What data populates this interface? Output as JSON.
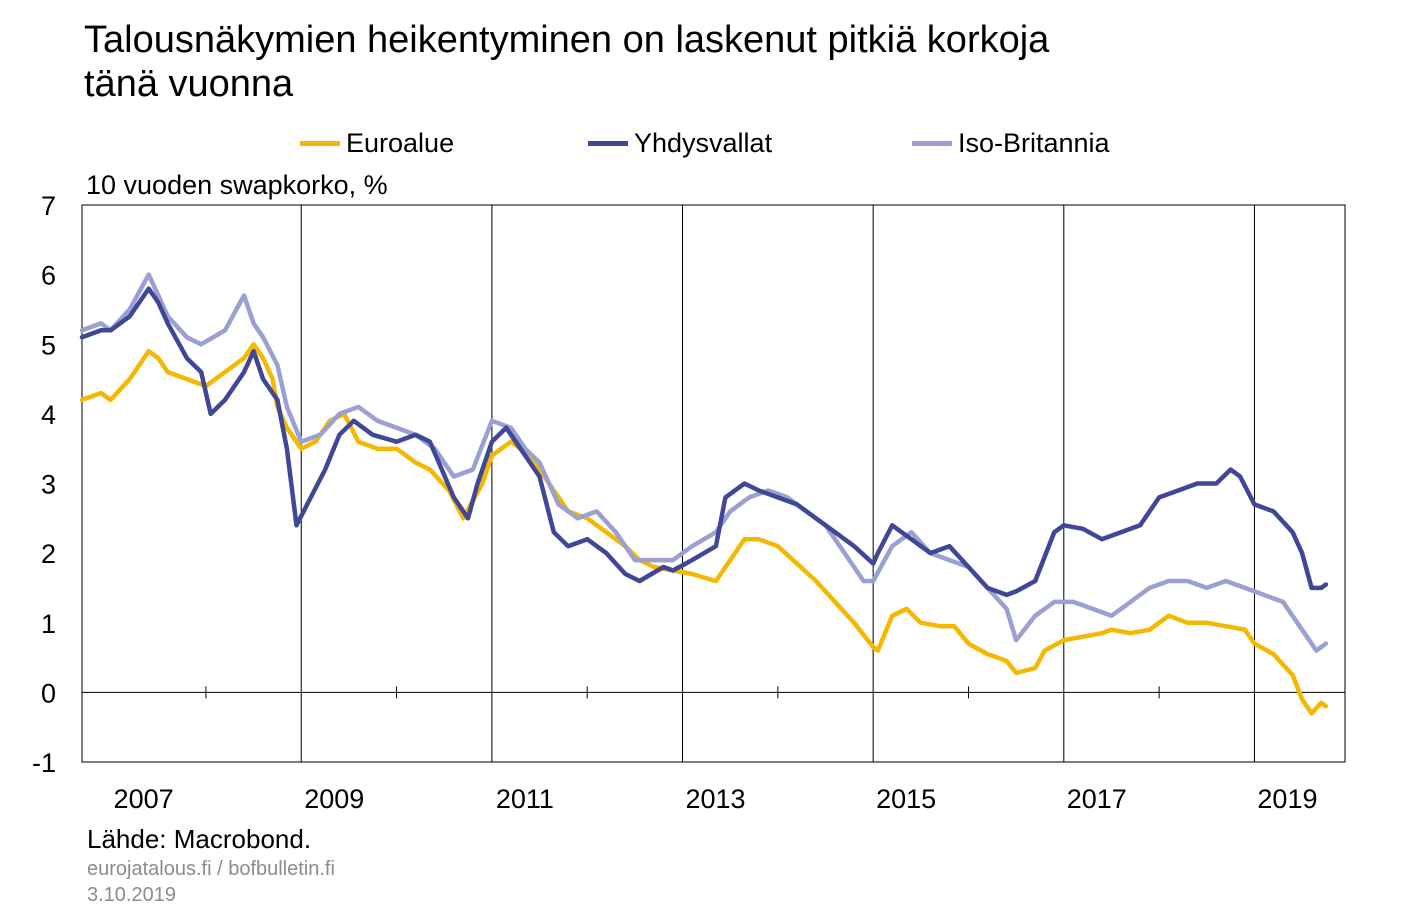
{
  "title_line1": "Talousnäkymien heikentyminen on laskenut pitkiä korkoja",
  "title_line2": "tänä vuonna",
  "legend": [
    {
      "name": "Euroalue",
      "color": "#F5B800"
    },
    {
      "name": "Yhdysvallat",
      "color": "#3F4796"
    },
    {
      "name": "Iso-Britannia",
      "color": "#9AA0D2"
    }
  ],
  "source": "Lähde: Macrobond.",
  "footer_sites": "eurojatalous.fi  / bofbulletin.fi",
  "footer_date": "3.10.2019",
  "chart_data": {
    "type": "line",
    "title": "Talousnäkymien heikentyminen on laskenut pitkiä korkoja tänä vuonna",
    "ylabel": "10 vuoden swapkorko, %",
    "xlabel": "",
    "ylim": [
      -1,
      7
    ],
    "yticks": [
      "-1",
      "0",
      "1",
      "2",
      "3",
      "4",
      "5",
      "6",
      "7"
    ],
    "xlim": [
      2006.7,
      2019.95
    ],
    "xtick_labels": [
      "2007",
      "2009",
      "2011",
      "2013",
      "2015",
      "2017",
      "2019"
    ],
    "grid": "vertical lines at odd years, horizontal line at 0",
    "legend_position": "top",
    "series": [
      {
        "name": "Euroalue",
        "color": "#F5B800",
        "x": [
          2006.7,
          2006.9,
          2007.0,
          2007.2,
          2007.4,
          2007.5,
          2007.6,
          2007.8,
          2008.0,
          2008.2,
          2008.4,
          2008.5,
          2008.6,
          2008.7,
          2008.75,
          2008.85,
          2009.0,
          2009.15,
          2009.3,
          2009.45,
          2009.6,
          2009.8,
          2010.0,
          2010.2,
          2010.35,
          2010.55,
          2010.7,
          2010.9,
          2011.0,
          2011.2,
          2011.3,
          2011.5,
          2011.6,
          2011.8,
          2012.0,
          2012.2,
          2012.4,
          2012.55,
          2012.7,
          2012.9,
          2013.1,
          2013.35,
          2013.5,
          2013.65,
          2013.8,
          2014.0,
          2014.2,
          2014.4,
          2014.6,
          2014.8,
          2015.0,
          2015.05,
          2015.2,
          2015.35,
          2015.5,
          2015.7,
          2015.85,
          2016.0,
          2016.2,
          2016.4,
          2016.5,
          2016.7,
          2016.8,
          2017.0,
          2017.2,
          2017.4,
          2017.5,
          2017.7,
          2017.9,
          2018.1,
          2018.3,
          2018.5,
          2018.7,
          2018.9,
          2019.0,
          2019.2,
          2019.4,
          2019.5,
          2019.6,
          2019.7,
          2019.75
        ],
        "values": [
          4.2,
          4.3,
          4.2,
          4.5,
          4.9,
          4.8,
          4.6,
          4.5,
          4.4,
          4.6,
          4.8,
          5.0,
          4.8,
          4.5,
          4.1,
          3.8,
          3.5,
          3.6,
          3.9,
          4.0,
          3.6,
          3.5,
          3.5,
          3.3,
          3.2,
          2.9,
          2.5,
          3.0,
          3.4,
          3.6,
          3.5,
          3.2,
          3.0,
          2.6,
          2.5,
          2.3,
          2.1,
          1.9,
          1.8,
          1.75,
          1.7,
          1.6,
          1.9,
          2.2,
          2.2,
          2.1,
          1.85,
          1.6,
          1.3,
          1.0,
          0.65,
          0.6,
          1.1,
          1.2,
          1.0,
          0.95,
          0.95,
          0.7,
          0.55,
          0.45,
          0.28,
          0.35,
          0.6,
          0.75,
          0.8,
          0.85,
          0.9,
          0.85,
          0.9,
          1.1,
          1.0,
          1.0,
          0.95,
          0.9,
          0.7,
          0.55,
          0.25,
          -0.1,
          -0.3,
          -0.15,
          -0.2
        ]
      },
      {
        "name": "Yhdysvallat",
        "color": "#3F4796",
        "x": [
          2006.7,
          2006.9,
          2007.0,
          2007.2,
          2007.4,
          2007.5,
          2007.6,
          2007.8,
          2007.95,
          2008.05,
          2008.2,
          2008.4,
          2008.5,
          2008.6,
          2008.75,
          2008.85,
          2008.95,
          2009.1,
          2009.25,
          2009.4,
          2009.55,
          2009.75,
          2010.0,
          2010.2,
          2010.35,
          2010.6,
          2010.75,
          2010.85,
          2011.0,
          2011.15,
          2011.3,
          2011.5,
          2011.65,
          2011.8,
          2012.0,
          2012.2,
          2012.4,
          2012.55,
          2012.8,
          2012.9,
          2013.1,
          2013.35,
          2013.45,
          2013.65,
          2013.8,
          2014.0,
          2014.2,
          2014.4,
          2014.6,
          2014.8,
          2015.0,
          2015.05,
          2015.2,
          2015.4,
          2015.6,
          2015.8,
          2016.0,
          2016.2,
          2016.4,
          2016.5,
          2016.7,
          2016.9,
          2017.0,
          2017.2,
          2017.4,
          2017.6,
          2017.8,
          2018.0,
          2018.2,
          2018.4,
          2018.6,
          2018.75,
          2018.85,
          2019.0,
          2019.2,
          2019.4,
          2019.5,
          2019.6,
          2019.7,
          2019.75
        ],
        "values": [
          5.1,
          5.2,
          5.2,
          5.4,
          5.8,
          5.6,
          5.3,
          4.8,
          4.6,
          4.0,
          4.2,
          4.6,
          4.9,
          4.5,
          4.2,
          3.5,
          2.4,
          2.8,
          3.2,
          3.7,
          3.9,
          3.7,
          3.6,
          3.7,
          3.6,
          2.8,
          2.5,
          3.0,
          3.6,
          3.8,
          3.5,
          3.1,
          2.3,
          2.1,
          2.2,
          2.0,
          1.7,
          1.6,
          1.8,
          1.75,
          1.9,
          2.1,
          2.8,
          3.0,
          2.9,
          2.8,
          2.7,
          2.5,
          2.3,
          2.1,
          1.85,
          2.0,
          2.4,
          2.2,
          2.0,
          2.1,
          1.8,
          1.5,
          1.4,
          1.45,
          1.6,
          2.3,
          2.4,
          2.35,
          2.2,
          2.3,
          2.4,
          2.8,
          2.9,
          3.0,
          3.0,
          3.2,
          3.1,
          2.7,
          2.6,
          2.3,
          2.0,
          1.5,
          1.5,
          1.55
        ]
      },
      {
        "name": "Iso-Britannia",
        "color": "#9AA0D2",
        "x": [
          2006.7,
          2006.9,
          2007.0,
          2007.2,
          2007.4,
          2007.5,
          2007.6,
          2007.8,
          2007.95,
          2008.2,
          2008.4,
          2008.5,
          2008.6,
          2008.75,
          2008.85,
          2009.0,
          2009.2,
          2009.4,
          2009.6,
          2009.8,
          2010.0,
          2010.2,
          2010.4,
          2010.6,
          2010.8,
          2011.0,
          2011.2,
          2011.35,
          2011.5,
          2011.7,
          2011.9,
          2012.1,
          2012.3,
          2012.5,
          2012.7,
          2012.9,
          2013.1,
          2013.35,
          2013.5,
          2013.7,
          2013.9,
          2014.1,
          2014.3,
          2014.5,
          2014.7,
          2014.9,
          2015.0,
          2015.2,
          2015.4,
          2015.6,
          2015.8,
          2016.0,
          2016.2,
          2016.4,
          2016.5,
          2016.7,
          2016.9,
          2017.1,
          2017.3,
          2017.5,
          2017.7,
          2017.9,
          2018.1,
          2018.3,
          2018.5,
          2018.7,
          2018.9,
          2019.1,
          2019.3,
          2019.45,
          2019.55,
          2019.65,
          2019.75
        ],
        "values": [
          5.2,
          5.3,
          5.2,
          5.5,
          6.0,
          5.7,
          5.4,
          5.1,
          5.0,
          5.2,
          5.7,
          5.3,
          5.1,
          4.7,
          4.1,
          3.6,
          3.7,
          4.0,
          4.1,
          3.9,
          3.8,
          3.7,
          3.5,
          3.1,
          3.2,
          3.9,
          3.8,
          3.5,
          3.3,
          2.7,
          2.5,
          2.6,
          2.3,
          1.9,
          1.9,
          1.9,
          2.1,
          2.3,
          2.6,
          2.8,
          2.9,
          2.8,
          2.6,
          2.4,
          2.0,
          1.6,
          1.6,
          2.1,
          2.3,
          2.0,
          1.9,
          1.8,
          1.5,
          1.2,
          0.75,
          1.1,
          1.3,
          1.3,
          1.2,
          1.1,
          1.3,
          1.5,
          1.6,
          1.6,
          1.5,
          1.6,
          1.5,
          1.4,
          1.3,
          1.0,
          0.8,
          0.6,
          0.7
        ]
      }
    ]
  }
}
